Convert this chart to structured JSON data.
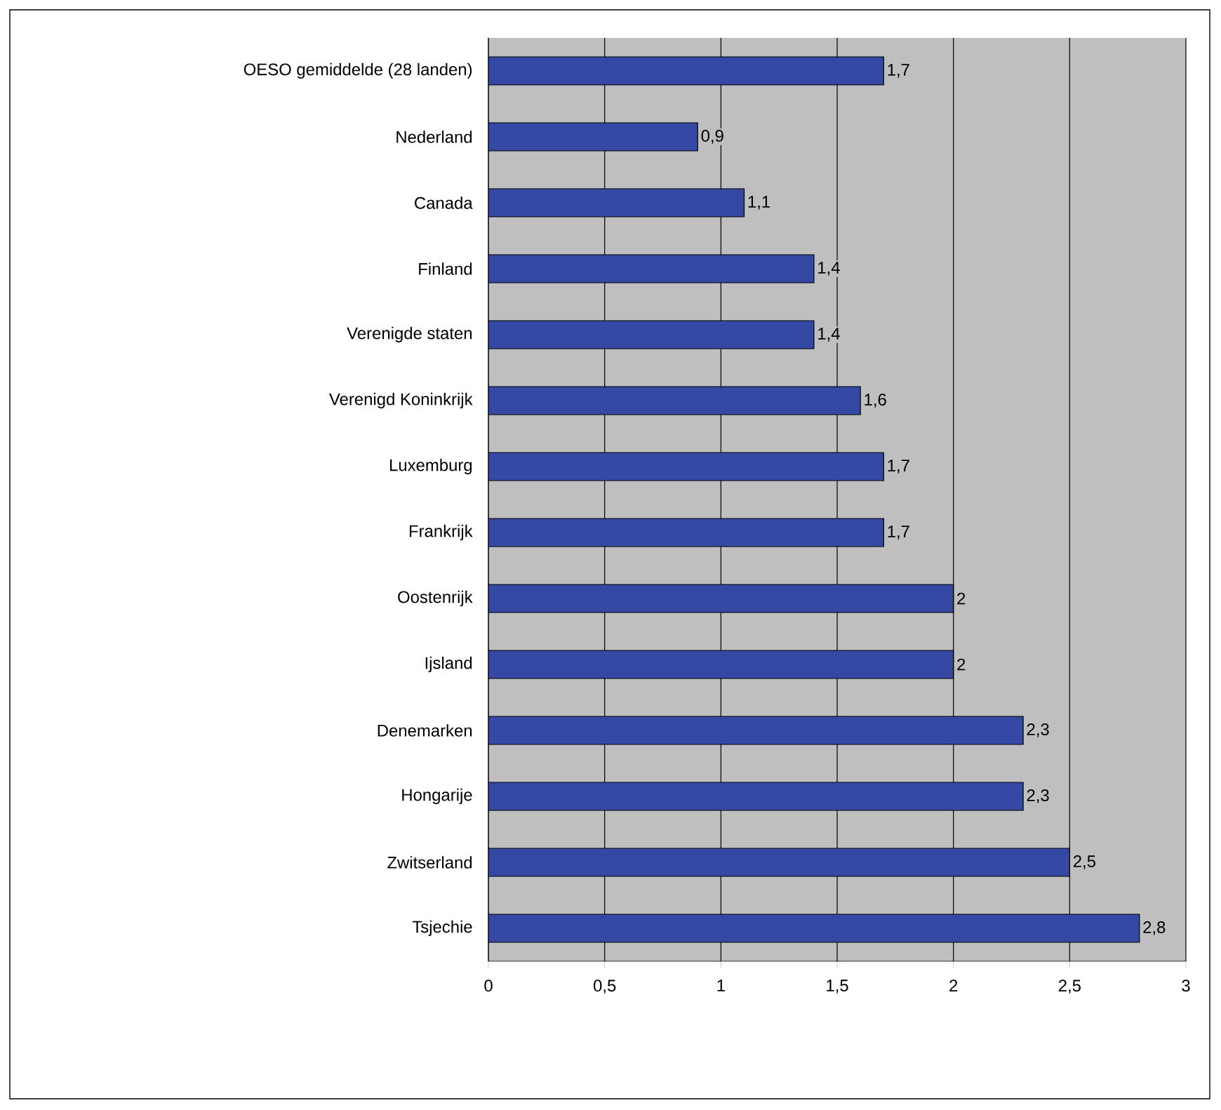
{
  "chart_data": {
    "type": "bar",
    "orientation": "horizontal",
    "categories": [
      "OESO gemiddelde (28 landen)",
      "Nederland",
      "Canada",
      "Finland",
      "Verenigde staten",
      "Verenigd Koninkrijk",
      "Luxemburg",
      "Frankrijk",
      "Oostenrijk",
      "Ijsland",
      "Denemarken",
      "Hongarije",
      "Zwitserland",
      "Tsjechie"
    ],
    "values": [
      1.7,
      0.9,
      1.1,
      1.4,
      1.4,
      1.6,
      1.7,
      1.7,
      2,
      2,
      2.3,
      2.3,
      2.5,
      2.8
    ],
    "value_labels": [
      "1,7",
      "0,9",
      "1,1",
      "1,4",
      "1,4",
      "1,6",
      "1,7",
      "1,7",
      "2",
      "2",
      "2,3",
      "2,3",
      "2,5",
      "2,8"
    ],
    "color": "#3448a4",
    "xlim": [
      0,
      3
    ],
    "xticks": [
      0,
      {
        "value": 0.5,
        "label": "0,5"
      },
      1,
      {
        "value": 1.5,
        "label": "1,5"
      },
      2,
      {
        "value": 2.5,
        "label": "2,5"
      },
      3
    ],
    "grid": "x"
  }
}
